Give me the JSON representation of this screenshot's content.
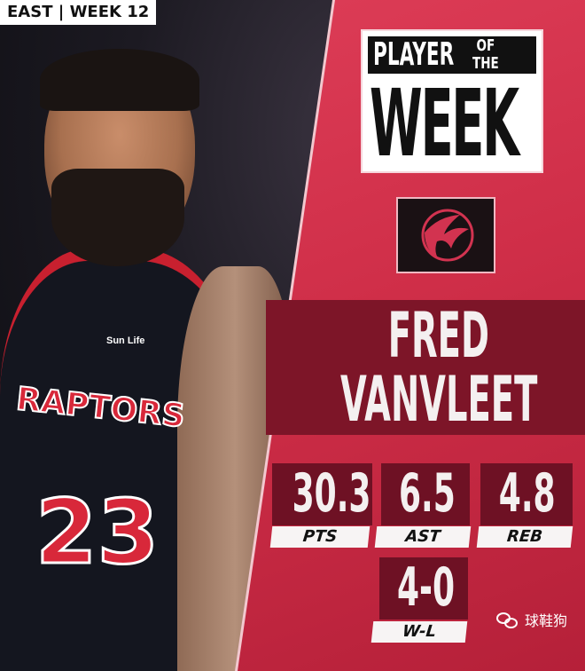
{
  "header_tag": "EAST | WEEK 12",
  "title": {
    "line1": "PLAYER",
    "of": "OF",
    "the": "THE",
    "line2": "WEEK"
  },
  "team_logo": "raptors-basketball-claw-logo",
  "player": {
    "first_name": "FRED",
    "last_name": "VANVLEET"
  },
  "jersey": {
    "team": "RAPTORS",
    "number": "23",
    "sponsor": "Sun Life"
  },
  "stats": [
    {
      "value": "30.3",
      "label": "PTS"
    },
    {
      "value": "6.5",
      "label": "AST"
    },
    {
      "value": "4.8",
      "label": "REB"
    },
    {
      "value": "4-0",
      "label": "W-L"
    }
  ],
  "watermark": "球鞋狗",
  "colors": {
    "panel_red": "#d23350",
    "band_dark_red": "#7d1528",
    "stat_box": "#6e1124"
  }
}
